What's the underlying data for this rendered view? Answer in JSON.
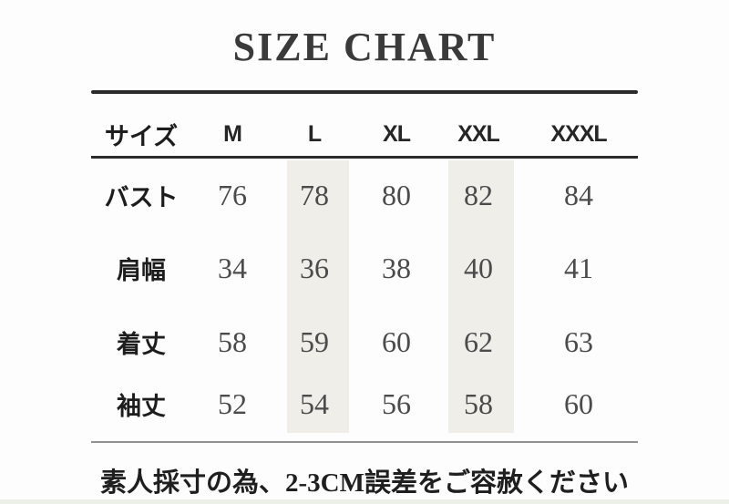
{
  "page": {
    "title": "SIZE CHART",
    "footer_note": "素人採寸の為、2-3CM誤差をご容赦ください"
  },
  "table": {
    "header": {
      "label": "サイズ",
      "sizes": [
        "M",
        "L",
        "XL",
        "XXL",
        "XXXL"
      ]
    },
    "rows": [
      {
        "label": "バスト",
        "values": [
          "76",
          "78",
          "80",
          "82",
          "84"
        ]
      },
      {
        "label": "肩幅",
        "values": [
          "34",
          "36",
          "38",
          "40",
          "41"
        ]
      },
      {
        "label": "着丈",
        "values": [
          "58",
          "59",
          "60",
          "62",
          "63"
        ]
      },
      {
        "label": "袖丈",
        "values": [
          "52",
          "54",
          "56",
          "58",
          "60"
        ]
      }
    ],
    "highlighted_columns": [
      "L",
      "XXL"
    ]
  },
  "colors": {
    "background": "#fdfdfd",
    "highlight": "#f0eee9",
    "rule_dark": "#2b2b2b",
    "rule_gray": "#919191",
    "title_text": "#3a3a3a",
    "number_text": "#4b4b4b",
    "label_text": "#1d1d1d",
    "bottom_band": "#edf0e8"
  },
  "chart_data": {
    "type": "table",
    "title": "SIZE CHART",
    "columns": [
      "サイズ",
      "M",
      "L",
      "XL",
      "XXL",
      "XXXL"
    ],
    "rows": [
      [
        "バスト",
        76,
        78,
        80,
        82,
        84
      ],
      [
        "肩幅",
        34,
        36,
        38,
        40,
        41
      ],
      [
        "着丈",
        58,
        59,
        60,
        62,
        63
      ],
      [
        "袖丈",
        52,
        54,
        56,
        58,
        60
      ]
    ],
    "highlighted_columns": [
      "L",
      "XXL"
    ],
    "note": "素人採寸の為、2-3CM誤差をご容赦ください"
  }
}
